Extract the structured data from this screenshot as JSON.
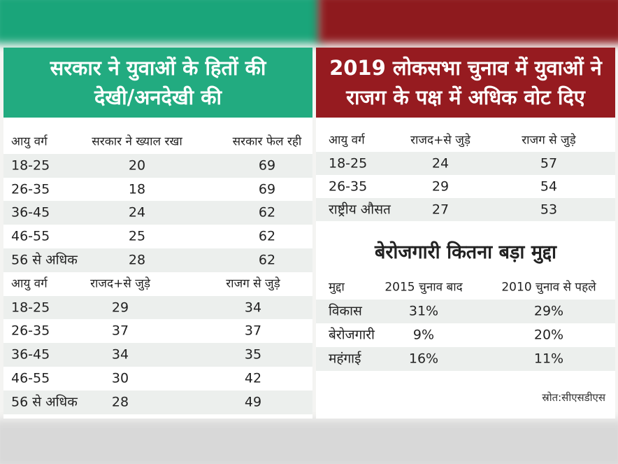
{
  "left_panel": {
    "title_lines": [
      "सरकार ने युवाओं के हितों की",
      "देखी/अनदेखी की"
    ],
    "tables": [
      {
        "header": [
          "आयु वर्ग",
          "सरकार ने ख्याल रखा",
          "सरकार फेल रही"
        ],
        "rows": [
          [
            "18-25",
            20,
            69
          ],
          [
            "26-35",
            18,
            69
          ],
          [
            "36-45",
            24,
            62
          ],
          [
            "46-55",
            25,
            62
          ],
          [
            "56 से अधिक",
            28,
            62
          ]
        ]
      },
      {
        "header": [
          "आयु वर्ग",
          "राजद+से जुड़े",
          "राजग से जुड़े"
        ],
        "rows": [
          [
            "18-25",
            29,
            34
          ],
          [
            "26-35",
            37,
            37
          ],
          [
            "36-45",
            34,
            35
          ],
          [
            "46-55",
            30,
            42
          ],
          [
            "56 से अधिक",
            28,
            49
          ]
        ]
      }
    ]
  },
  "right_panel": {
    "title_lines": [
      "2019 लोकसभा चुनाव में युवाओं ने",
      "राजग के पक्ष में अधिक वोट दिए"
    ],
    "table": {
      "header": [
        "आयु वर्ग",
        "राजद+से जुड़े",
        "राजग से जुड़े"
      ],
      "rows": [
        [
          "18-25",
          24,
          57
        ],
        [
          "26-35",
          29,
          54
        ],
        [
          "राष्ट्रीय औसत",
          27,
          53
        ]
      ]
    },
    "subtitle": "बेरोजगारी कितना बड़ा मुद्दा",
    "issue_table": {
      "header": [
        "मुद्दा",
        "2015 चुनाव बाद",
        "2010 चुनाव से पहले"
      ],
      "rows": [
        [
          "विकास",
          "31%",
          "29%"
        ],
        [
          "बेरोजगारी",
          "9%",
          "20%"
        ],
        [
          "महंगाई",
          "16%",
          "11%"
        ]
      ]
    },
    "source": "स्रोत:सीएसडीएस"
  }
}
